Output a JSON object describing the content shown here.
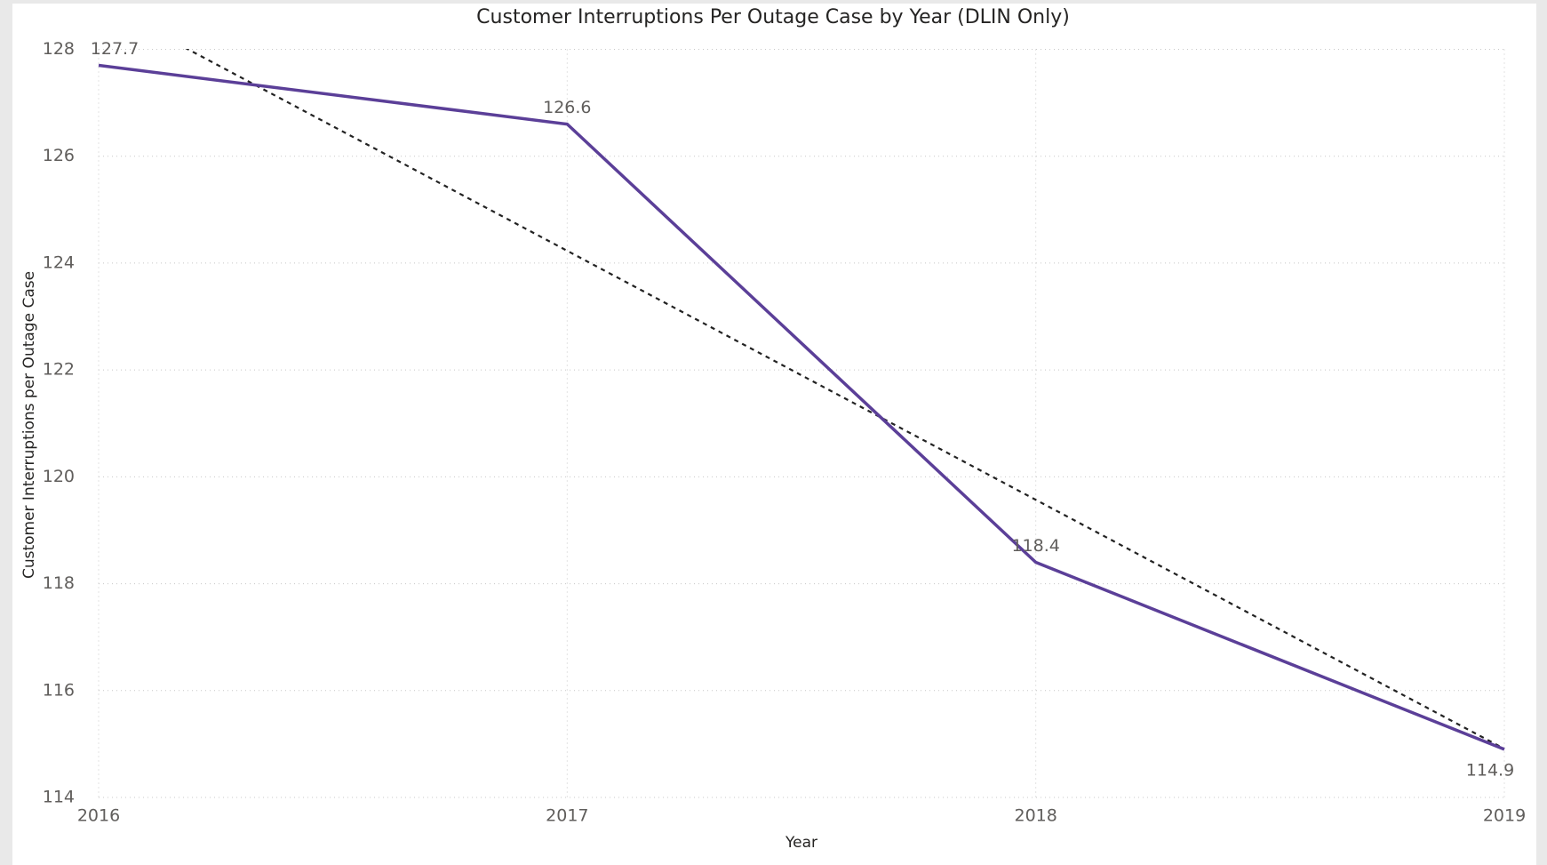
{
  "chart_data": {
    "type": "line",
    "title": "Customer Interruptions Per Outage Case by Year (DLIN Only)",
    "x_label": "Year",
    "y_label": "Customer Interruptions per Outage Case",
    "x": [
      2016,
      2017,
      2018,
      2019
    ],
    "series": [
      {
        "name": "Customer Interruptions per Outage Case",
        "color": "#5b3f98",
        "values": [
          127.7,
          126.6,
          118.4,
          114.9
        ]
      }
    ],
    "xlim": [
      2016,
      2019
    ],
    "xticks": [
      2016,
      2017,
      2018,
      2019
    ],
    "ylim": [
      114,
      128
    ],
    "yticks": [
      114,
      116,
      118,
      120,
      122,
      124,
      126,
      128
    ],
    "grid": true,
    "trend_line": true,
    "data_labels": true
  }
}
